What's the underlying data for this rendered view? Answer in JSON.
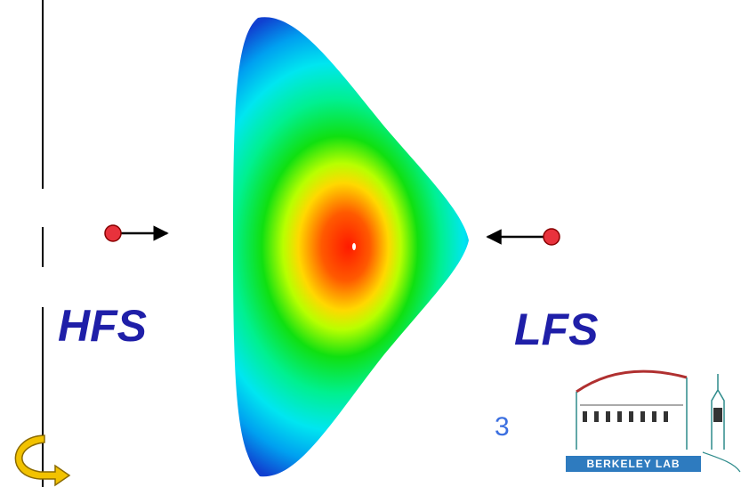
{
  "labels": {
    "hfs": "HFS",
    "lfs": "LFS"
  },
  "page_number": "3",
  "logo": {
    "text": "BERKELEY LAB"
  }
}
